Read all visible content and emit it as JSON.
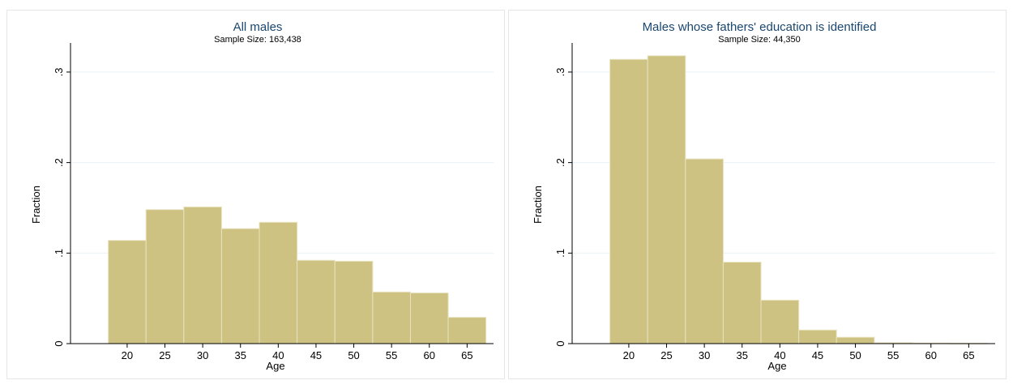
{
  "colors": {
    "bar_fill": "#cdc281",
    "bar_stroke": "#e8e2c0",
    "plot_background": "#ffffff",
    "outer_background": "#eaf0f4",
    "title_color": "#1a476f",
    "grid_color": "#eaf0f4"
  },
  "chart_data": [
    {
      "type": "bar",
      "title": "All males",
      "subtitle": "Sample Size: 163,438",
      "xlabel": "Age",
      "ylabel": "Fraction",
      "bin_edges": [
        17.5,
        22.5,
        27.5,
        32.5,
        37.5,
        42.5,
        47.5,
        52.5,
        57.5,
        62.5,
        67.5
      ],
      "values": [
        0.114,
        0.148,
        0.151,
        0.127,
        0.134,
        0.092,
        0.091,
        0.057,
        0.056,
        0.029
      ],
      "xticks": [
        20,
        25,
        30,
        35,
        40,
        45,
        50,
        55,
        60,
        65
      ],
      "xtick_labels": [
        "20",
        "25",
        "30",
        "35",
        "40",
        "45",
        "50",
        "55",
        "60",
        "65"
      ],
      "yticks": [
        0,
        0.1,
        0.2,
        0.3
      ],
      "ytick_labels": [
        "0",
        ".1",
        ".2",
        ".3"
      ],
      "xlim": [
        12.5,
        68.5
      ],
      "ylim": [
        0,
        0.325
      ],
      "grid": true
    },
    {
      "type": "bar",
      "title": "Males whose fathers' education is identified",
      "subtitle": "Sample Size: 44,350",
      "xlabel": "Age",
      "ylabel": "Fraction",
      "bin_edges": [
        17.5,
        22.5,
        27.5,
        32.5,
        37.5,
        42.5,
        47.5,
        52.5,
        57.5,
        62.5,
        67.5
      ],
      "values": [
        0.314,
        0.318,
        0.204,
        0.09,
        0.048,
        0.015,
        0.007,
        0.001,
        0.0006,
        0.0003
      ],
      "xticks": [
        20,
        25,
        30,
        35,
        40,
        45,
        50,
        55,
        60,
        65
      ],
      "xtick_labels": [
        "20",
        "25",
        "30",
        "35",
        "40",
        "45",
        "50",
        "55",
        "60",
        "65"
      ],
      "yticks": [
        0,
        0.1,
        0.2,
        0.3
      ],
      "ytick_labels": [
        "0",
        ".1",
        ".2",
        ".3"
      ],
      "xlim": [
        12.5,
        68.5
      ],
      "ylim": [
        0,
        0.325
      ],
      "grid": true
    }
  ]
}
